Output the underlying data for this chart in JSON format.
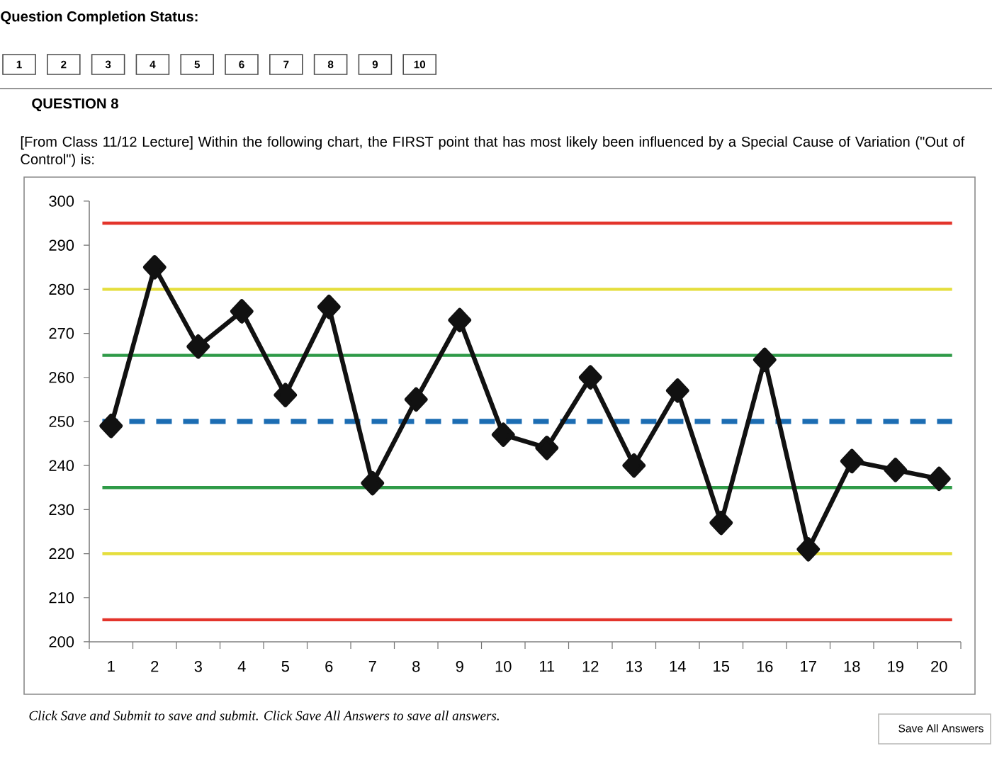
{
  "chart_data": {
    "type": "line",
    "title": "[From Class 11/12 Lecture] Within the following chart, the FIRST point that has most likely been influenced by a Special Cause of Variation (\"Out of Control\") is:",
    "subtitle": "QUESTION 8",
    "annotations": [
      "Question Completion Status:",
      "1",
      "2",
      "3",
      "4",
      "5",
      "6",
      "7",
      "8",
      "9",
      "10",
      "Click Save and Submit to save and submit. Click Save All Answers to save all answers.",
      "Save All Answers"
    ],
    "categories": [
      "1",
      "2",
      "3",
      "4",
      "5",
      "6",
      "7",
      "8",
      "9",
      "10",
      "11",
      "12",
      "13",
      "14",
      "15",
      "16",
      "17",
      "18",
      "19",
      "20"
    ],
    "series": [
      {
        "color": "#111111",
        "values": [
          249,
          285,
          267,
          275,
          256,
          276,
          236,
          255,
          273,
          247,
          244,
          260,
          240,
          257,
          227,
          264,
          221,
          241,
          239,
          237
        ]
      }
    ],
    "ylim": [
      200,
      300
    ],
    "yticks": [
      200,
      210,
      220,
      230,
      240,
      250,
      260,
      270,
      280,
      290,
      300
    ],
    "ref_lines": [
      {
        "axis": "y",
        "value": 295,
        "color": "#e3342b"
      },
      {
        "axis": "y",
        "value": 280,
        "color": "#e5de3c"
      },
      {
        "axis": "y",
        "value": 265,
        "color": "#2e9a47"
      },
      {
        "axis": "y",
        "value": 250,
        "color": "#1c6db3",
        "line_style": "dashed"
      },
      {
        "axis": "y",
        "value": 235,
        "color": "#2e9a47"
      },
      {
        "axis": "y",
        "value": 220,
        "color": "#e5de3c"
      },
      {
        "axis": "y",
        "value": 205,
        "color": "#e3342b"
      }
    ],
    "marker": "diamond"
  }
}
